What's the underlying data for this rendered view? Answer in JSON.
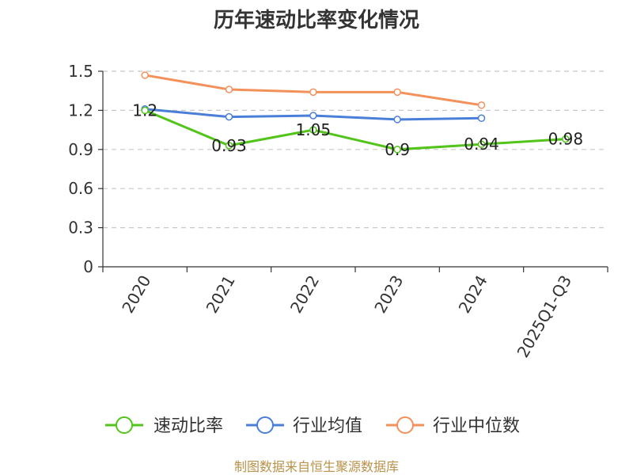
{
  "chart_data": {
    "type": "line",
    "title": "历年速动比率变化情况",
    "categories": [
      "2020",
      "2021",
      "2022",
      "2023",
      "2024",
      "2025Q1-Q3"
    ],
    "ylim": [
      0,
      1.5
    ],
    "yticks": [
      "0",
      "0.3",
      "0.6",
      "0.9",
      "1.2",
      "1.5"
    ],
    "grid": true,
    "legend_position": "bottom",
    "series": [
      {
        "name": "速动比率",
        "color": "#52c41a",
        "values": [
          1.2,
          0.93,
          1.05,
          0.9,
          0.94,
          0.98
        ],
        "labels": [
          "1.2",
          "0.93",
          "1.05",
          "0.9",
          "0.94",
          "0.98"
        ]
      },
      {
        "name": "行业均值",
        "color": "#4a7fd9",
        "values": [
          1.21,
          1.15,
          1.16,
          1.13,
          1.14,
          null
        ]
      },
      {
        "name": "行业中位数",
        "color": "#f4905a",
        "values": [
          1.47,
          1.36,
          1.34,
          1.34,
          1.24,
          null
        ]
      }
    ]
  },
  "source": "制图数据来自恒生聚源数据库"
}
